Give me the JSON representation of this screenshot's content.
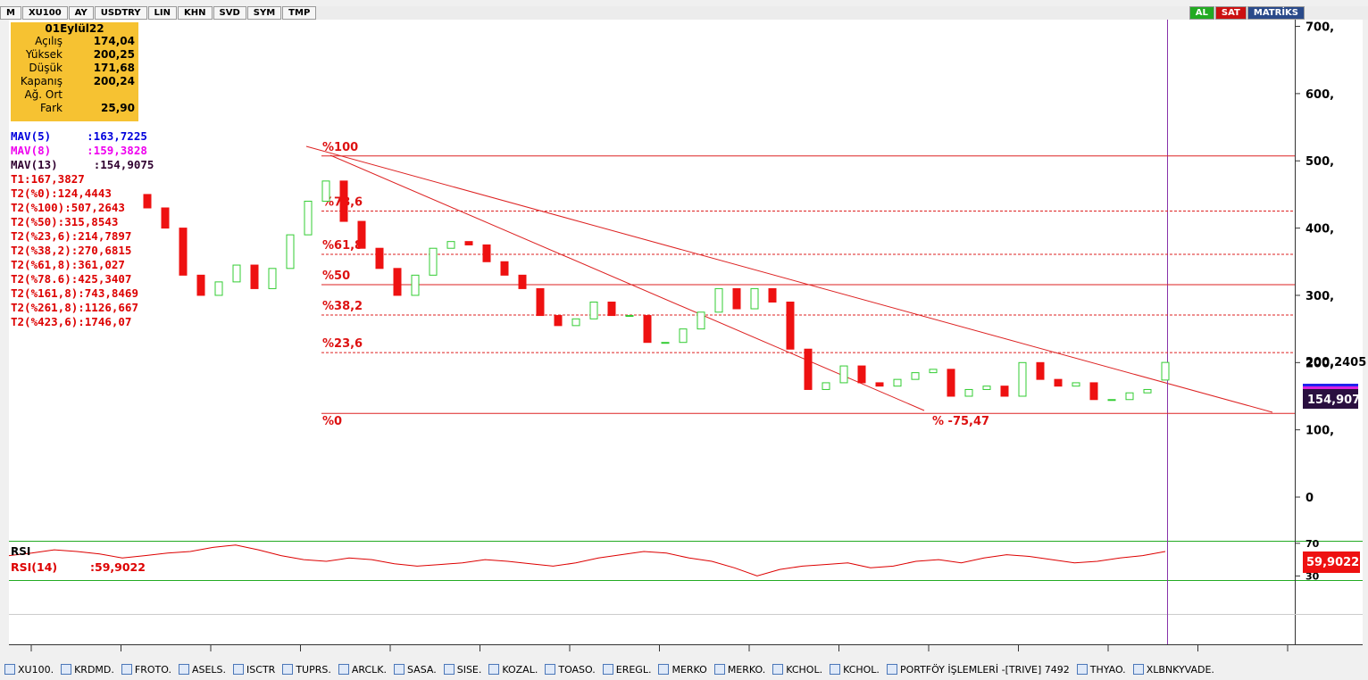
{
  "toolbar": {
    "left": [
      "M",
      "XU100",
      "AY",
      "USDTRY",
      "LIN",
      "KHN",
      "SVD",
      "SYM",
      "TMP"
    ],
    "right": [
      "AL",
      "SAT",
      "MATRİKS"
    ]
  },
  "info": {
    "date": "01Eylül22",
    "rows": [
      [
        "Açılış",
        "174,04"
      ],
      [
        "Yüksek",
        "200,25"
      ],
      [
        "Düşük",
        "171,68"
      ],
      [
        "Kapanış",
        "200,24"
      ],
      [
        "Ağ. Ort",
        ""
      ],
      [
        "Fark",
        "25,90"
      ]
    ]
  },
  "indicators": [
    {
      "name": "MAV(5)",
      "value": ":163,7225",
      "color": "#0000dd"
    },
    {
      "name": "MAV(8)",
      "value": ":159,3828",
      "color": "#ee00ee"
    },
    {
      "name": "MAV(13)",
      "value": ":154,9075",
      "color": "#300030"
    },
    {
      "name": "T1:167,3827",
      "color": "#dd0000"
    },
    {
      "name": "T2(%0):124,4443",
      "color": "#dd0000"
    },
    {
      "name": "T2(%100):507,2643",
      "color": "#dd0000"
    },
    {
      "name": "T2(%50):315,8543",
      "color": "#dd0000"
    },
    {
      "name": "T2(%23,6):214,7897",
      "color": "#dd0000"
    },
    {
      "name": "T2(%38,2):270,6815",
      "color": "#dd0000"
    },
    {
      "name": "T2(%61,8):361,027",
      "color": "#dd0000"
    },
    {
      "name": "T2(%78.6):425,3407",
      "color": "#dd0000"
    },
    {
      "name": "T2(%161,8):743,8469",
      "color": "#dd0000"
    },
    {
      "name": "T2(%261,8):1126,667",
      "color": "#dd0000"
    },
    {
      "name": "T2(%423,6):1746,07",
      "color": "#dd0000"
    }
  ],
  "chart_data": {
    "type": "candlestick",
    "open": [
      450,
      430,
      400,
      330,
      300,
      320,
      345,
      310,
      340,
      390,
      440,
      470,
      410,
      370,
      340,
      300,
      330,
      370,
      380,
      375,
      350,
      330,
      310,
      270,
      255,
      265,
      290,
      270,
      270,
      230,
      230,
      250,
      275,
      310,
      280,
      310,
      290,
      220,
      160,
      170,
      195,
      170,
      165,
      175,
      185,
      190,
      150,
      160,
      165,
      150,
      200,
      175,
      165,
      170,
      145,
      145,
      155,
      174.04
    ],
    "close": [
      430,
      400,
      330,
      300,
      320,
      345,
      310,
      340,
      390,
      440,
      470,
      410,
      370,
      340,
      300,
      330,
      370,
      380,
      375,
      350,
      330,
      310,
      270,
      255,
      265,
      290,
      270,
      270,
      230,
      230,
      250,
      275,
      310,
      280,
      310,
      290,
      220,
      160,
      170,
      195,
      170,
      165,
      175,
      185,
      190,
      150,
      160,
      165,
      150,
      200,
      175,
      165,
      170,
      145,
      145,
      155,
      160,
      200.24
    ],
    "up_color": "#33cc33",
    "down_color": "#ee1111",
    "ylim": [
      -65,
      710
    ],
    "yticks": [
      {
        "value": 700,
        "label": "700,"
      },
      {
        "value": 600,
        "label": "600,"
      },
      {
        "value": 500,
        "label": "500,"
      },
      {
        "value": 400,
        "label": "400,"
      },
      {
        "value": 300,
        "label": "300,"
      },
      {
        "value": 200,
        "label": "200,"
      },
      {
        "value": 100,
        "label": "100,"
      },
      {
        "value": 0,
        "label": "0"
      }
    ],
    "fib": [
      {
        "label": "%100",
        "value": 507.2643
      },
      {
        "label": "%78,6",
        "value": 425.3407
      },
      {
        "label": "%61,8",
        "value": 361.027
      },
      {
        "label": "%50",
        "value": 315.8543
      },
      {
        "label": "%38,2",
        "value": 270.6815
      },
      {
        "label": "%23,6",
        "value": 214.7897
      },
      {
        "label": "%0",
        "value": 124.4443
      }
    ],
    "annotation": "% -75,47",
    "last_label": "200,2405",
    "mav_label": "154,907",
    "rsi": {
      "title": "RSI",
      "name": "RSI(14)",
      "value": ":59,9022",
      "last_label": "59,9022",
      "color": "#dd0000",
      "ylim": [
        25,
        72
      ],
      "yticks": [
        70,
        30
      ],
      "values": [
        55,
        58,
        62,
        60,
        57,
        52,
        55,
        58,
        60,
        65,
        68,
        62,
        55,
        50,
        48,
        52,
        50,
        45,
        42,
        44,
        46,
        50,
        48,
        45,
        42,
        46,
        52,
        56,
        60,
        58,
        52,
        48,
        40,
        30,
        38,
        42,
        44,
        46,
        40,
        42,
        48,
        50,
        46,
        52,
        56,
        54,
        50,
        46,
        48,
        52,
        55,
        60
      ]
    }
  },
  "taskbar": [
    "XU100.",
    "KRDMD.",
    "FROTO.",
    "ASELS.",
    "ISCTR",
    "TUPRS.",
    "ARCLK.",
    "SASA.",
    "SISE.",
    "KOZAL.",
    "TOASO.",
    "EREGL.",
    "MERKO",
    "MERKO.",
    "KCHOL.",
    "KCHOL.",
    "PORTFÖY İŞLEMLERİ -[TRIVE] 7492",
    "THYAO.",
    "XLBNKYVADE."
  ]
}
